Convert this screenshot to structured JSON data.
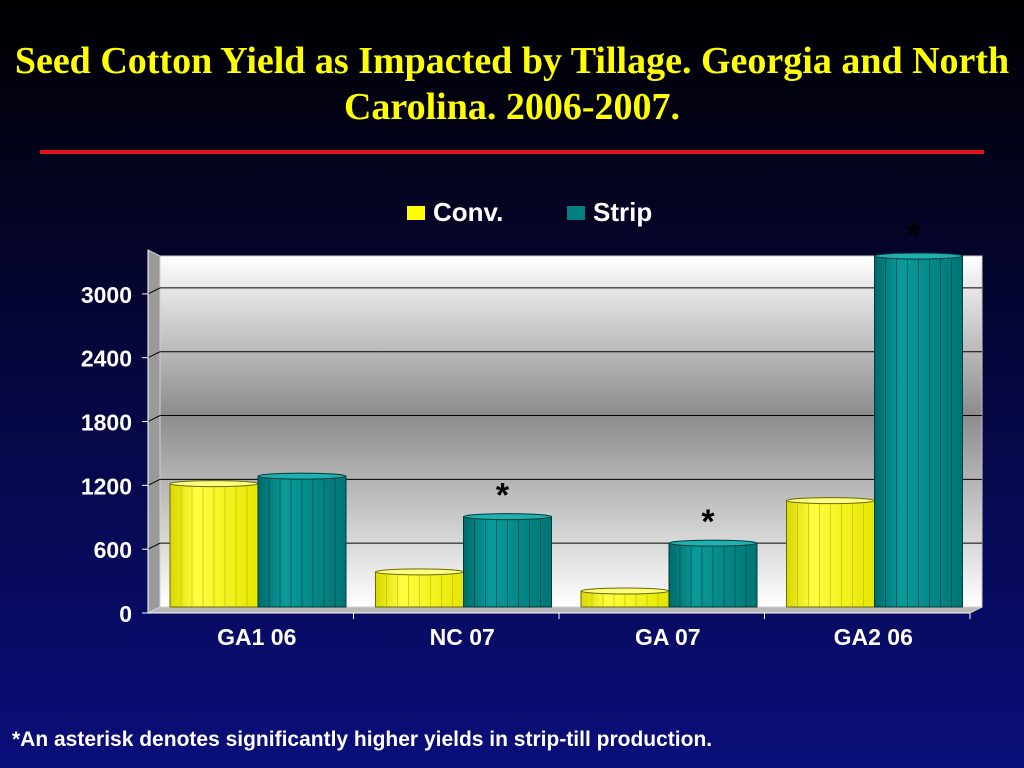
{
  "title": "Seed Cotton Yield as Impacted by Tillage.  Georgia and North Carolina.  2006-2007.",
  "footnote": "*An asterisk denotes significantly higher yields in strip-till production.",
  "colors": {
    "title": "#ffff00",
    "rule": "#e0141e",
    "conv": "#ffff00",
    "strip": "#008080",
    "text": "#ffffff"
  },
  "chart_data": {
    "type": "bar",
    "title": "",
    "xlabel": "",
    "ylabel": "",
    "categories": [
      "GA1 06",
      "NC 07",
      "GA 07",
      "GA2 06"
    ],
    "series": [
      {
        "name": "Conv.",
        "color": "#ffff00",
        "values": [
          1160,
          330,
          150,
          1000
        ]
      },
      {
        "name": "Strip",
        "color": "#008080",
        "values": [
          1230,
          850,
          600,
          3300
        ]
      }
    ],
    "ylim": [
      0,
      3300
    ],
    "yticks": [
      0,
      600,
      1200,
      1800,
      2400,
      3000
    ],
    "grid": true,
    "legend": "top-center",
    "annotations": [
      {
        "category": "NC 07",
        "series": "Strip",
        "text": "*"
      },
      {
        "category": "GA 07",
        "series": "Strip",
        "text": "*"
      },
      {
        "category": "GA2 06",
        "series": "Strip",
        "text": "*"
      }
    ]
  }
}
